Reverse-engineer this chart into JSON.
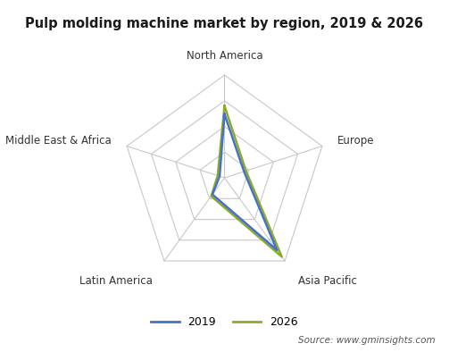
{
  "title": "Pulp molding machine market by region, 2019 & 2026",
  "categories": [
    "North America",
    "Europe",
    "Asia Pacific",
    "Latin America",
    "Middle East & Africa"
  ],
  "series": {
    "2019": [
      0.62,
      0.2,
      0.87,
      0.2,
      0.05
    ],
    "2026": [
      0.7,
      0.22,
      0.95,
      0.22,
      0.07
    ]
  },
  "colors": {
    "2019": "#4472C4",
    "2026": "#8faa2b"
  },
  "grid_levels": 4,
  "source_text": "Source: www.gminsights.com",
  "background_color": "#ffffff",
  "grid_color": "#c8c8c8",
  "label_color": "#333333",
  "legend_entries": [
    "2019",
    "2026"
  ],
  "title_fontsize": 10.5,
  "label_fontsize": 8.5,
  "legend_fontsize": 9
}
